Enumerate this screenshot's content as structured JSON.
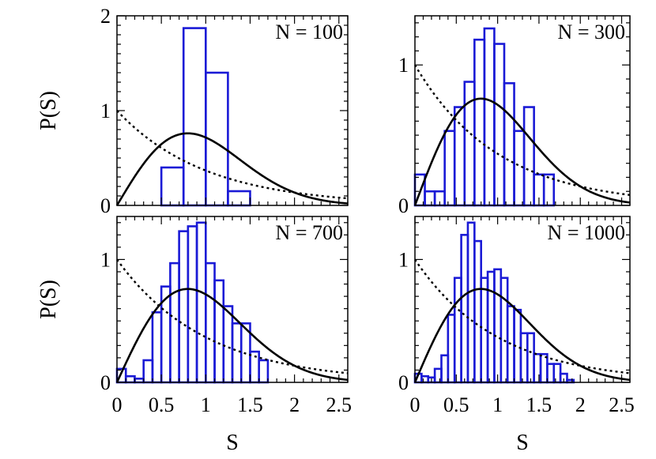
{
  "chart_data": [
    {
      "type": "bar",
      "label": "N = 100",
      "xlabel": "",
      "ylabel": "P(S)",
      "xlim": [
        0,
        2.6
      ],
      "ylim": [
        0,
        2.0
      ],
      "x_ticks": [],
      "y_ticks": [
        "0",
        "1",
        "2"
      ],
      "y_tick_values": [
        0,
        1,
        2
      ],
      "bin_width": 0.25,
      "bins": [
        {
          "x0": 0.5,
          "value": 0.4
        },
        {
          "x0": 0.75,
          "value": 1.87
        },
        {
          "x0": 1.0,
          "value": 1.4
        },
        {
          "x0": 1.25,
          "value": 0.15
        }
      ],
      "curves": [
        {
          "name": "Wigner surmise",
          "style": "solid"
        },
        {
          "name": "Poisson",
          "style": "dotted"
        }
      ]
    },
    {
      "type": "bar",
      "label": "N = 300",
      "xlabel": "",
      "ylabel": "",
      "xlim": [
        0,
        2.6
      ],
      "ylim": [
        0,
        1.35
      ],
      "x_ticks": [],
      "y_ticks": [
        "0",
        "1"
      ],
      "y_tick_values": [
        0,
        1
      ],
      "bin_width": 0.12,
      "bins": [
        {
          "x0": 0.0,
          "value": 0.22
        },
        {
          "x0": 0.12,
          "value": 0.1
        },
        {
          "x0": 0.24,
          "value": 0.1
        },
        {
          "x0": 0.36,
          "value": 0.53
        },
        {
          "x0": 0.48,
          "value": 0.7
        },
        {
          "x0": 0.6,
          "value": 0.88
        },
        {
          "x0": 0.72,
          "value": 1.18
        },
        {
          "x0": 0.84,
          "value": 1.26
        },
        {
          "x0": 0.96,
          "value": 1.15
        },
        {
          "x0": 1.08,
          "value": 0.87
        },
        {
          "x0": 1.2,
          "value": 0.53
        },
        {
          "x0": 1.32,
          "value": 0.7
        },
        {
          "x0": 1.44,
          "value": 0.22
        },
        {
          "x0": 1.56,
          "value": 0.22
        }
      ],
      "curves": [
        {
          "name": "Wigner surmise",
          "style": "solid"
        },
        {
          "name": "Poisson",
          "style": "dotted"
        }
      ]
    },
    {
      "type": "bar",
      "label": "N = 700",
      "xlabel": "S",
      "ylabel": "P(S)",
      "xlim": [
        0,
        2.6
      ],
      "ylim": [
        0,
        1.35
      ],
      "x_ticks": [
        "0",
        "0.5",
        "1",
        "1.5",
        "2",
        "2.5"
      ],
      "x_tick_values": [
        0,
        0.5,
        1,
        1.5,
        2,
        2.5
      ],
      "y_ticks": [
        "0",
        "1"
      ],
      "y_tick_values": [
        0,
        1
      ],
      "bin_width": 0.1,
      "bins": [
        {
          "x0": 0.0,
          "value": 0.11
        },
        {
          "x0": 0.1,
          "value": 0.05
        },
        {
          "x0": 0.2,
          "value": 0.03
        },
        {
          "x0": 0.3,
          "value": 0.18
        },
        {
          "x0": 0.4,
          "value": 0.57
        },
        {
          "x0": 0.5,
          "value": 0.78
        },
        {
          "x0": 0.6,
          "value": 0.97
        },
        {
          "x0": 0.7,
          "value": 1.23
        },
        {
          "x0": 0.8,
          "value": 1.27
        },
        {
          "x0": 0.9,
          "value": 1.3
        },
        {
          "x0": 1.0,
          "value": 0.97
        },
        {
          "x0": 1.1,
          "value": 0.83
        },
        {
          "x0": 1.2,
          "value": 0.62
        },
        {
          "x0": 1.3,
          "value": 0.48
        },
        {
          "x0": 1.4,
          "value": 0.48
        },
        {
          "x0": 1.5,
          "value": 0.25
        },
        {
          "x0": 1.6,
          "value": 0.18
        }
      ],
      "curves": [
        {
          "name": "Wigner surmise",
          "style": "solid"
        },
        {
          "name": "Poisson",
          "style": "dotted"
        }
      ]
    },
    {
      "type": "bar",
      "label": "N = 1000",
      "xlabel": "S",
      "ylabel": "",
      "xlim": [
        0,
        2.6
      ],
      "ylim": [
        0,
        1.35
      ],
      "x_ticks": [
        "0",
        "0.5",
        "1",
        "1.5",
        "2",
        "2.5"
      ],
      "x_tick_values": [
        0,
        0.5,
        1,
        1.5,
        2,
        2.5
      ],
      "y_ticks": [
        "0",
        "1"
      ],
      "y_tick_values": [
        0,
        1
      ],
      "bin_width": 0.08,
      "bins": [
        {
          "x0": 0.0,
          "value": 0.07
        },
        {
          "x0": 0.08,
          "value": 0.05
        },
        {
          "x0": 0.16,
          "value": 0.04
        },
        {
          "x0": 0.24,
          "value": 0.11
        },
        {
          "x0": 0.32,
          "value": 0.22
        },
        {
          "x0": 0.4,
          "value": 0.55
        },
        {
          "x0": 0.48,
          "value": 0.85
        },
        {
          "x0": 0.56,
          "value": 1.2
        },
        {
          "x0": 0.64,
          "value": 1.3
        },
        {
          "x0": 0.72,
          "value": 1.15
        },
        {
          "x0": 0.8,
          "value": 0.85
        },
        {
          "x0": 0.88,
          "value": 0.9
        },
        {
          "x0": 0.96,
          "value": 0.92
        },
        {
          "x0": 1.04,
          "value": 0.85
        },
        {
          "x0": 1.12,
          "value": 0.62
        },
        {
          "x0": 1.2,
          "value": 0.59
        },
        {
          "x0": 1.28,
          "value": 0.4
        },
        {
          "x0": 1.36,
          "value": 0.4
        },
        {
          "x0": 1.44,
          "value": 0.23
        },
        {
          "x0": 1.52,
          "value": 0.23
        },
        {
          "x0": 1.6,
          "value": 0.15
        },
        {
          "x0": 1.68,
          "value": 0.15
        },
        {
          "x0": 1.76,
          "value": 0.07
        },
        {
          "x0": 1.84,
          "value": 0.02
        }
      ],
      "curves": [
        {
          "name": "Wigner surmise",
          "style": "solid"
        },
        {
          "name": "Poisson",
          "style": "dotted"
        }
      ]
    }
  ],
  "colors": {
    "histogram": "#1a1ad6",
    "curve": "#000000",
    "frame": "#000000"
  }
}
